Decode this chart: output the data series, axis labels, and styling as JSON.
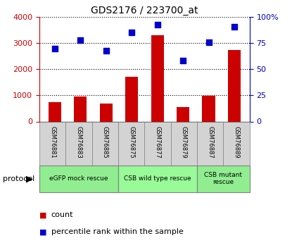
{
  "title": "GDS2176 / 223700_at",
  "samples": [
    "GSM76881",
    "GSM76883",
    "GSM76885",
    "GSM76875",
    "GSM76877",
    "GSM76879",
    "GSM76887",
    "GSM76889"
  ],
  "counts": [
    750,
    960,
    680,
    1700,
    3300,
    550,
    980,
    2750
  ],
  "percentiles": [
    70,
    78,
    68,
    85,
    93,
    58,
    76,
    91
  ],
  "ylim_left": [
    0,
    4000
  ],
  "ylim_right": [
    0,
    100
  ],
  "yticks_left": [
    0,
    1000,
    2000,
    3000,
    4000
  ],
  "yticks_right": [
    0,
    25,
    50,
    75,
    100
  ],
  "yticklabels_right": [
    "0",
    "25",
    "50",
    "75",
    "100%"
  ],
  "bar_color": "#cc0000",
  "dot_color": "#0000cc",
  "protocol_groups": [
    {
      "label": "eGFP mock rescue",
      "start": 0,
      "end": 3,
      "color": "#90ee90"
    },
    {
      "label": "CSB wild type rescue",
      "start": 3,
      "end": 6,
      "color": "#98fb98"
    },
    {
      "label": "CSB mutant\nrescue",
      "start": 6,
      "end": 8,
      "color": "#90ee90"
    }
  ],
  "legend_bar_label": "count",
  "legend_dot_label": "percentile rank within the sample",
  "protocol_label": "protocol"
}
